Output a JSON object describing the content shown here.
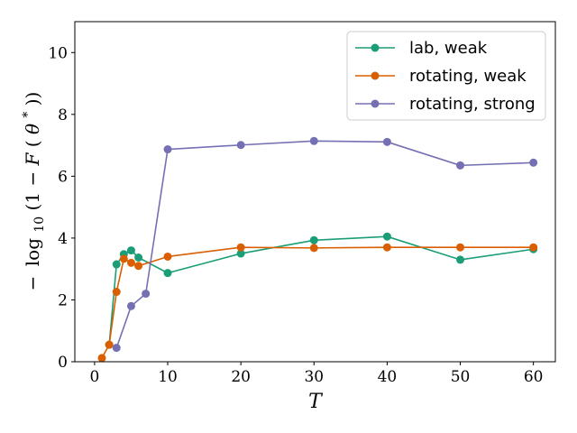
{
  "chart_data": {
    "type": "line",
    "xlabel": "T",
    "ylabel": "−log₁₀(1 − F(θ*))",
    "ylabel_parts": {
      "minus": "−",
      "log": "log",
      "sub": "10",
      "mid": "(1 − ",
      "f": "F",
      "open": "(",
      "theta": "θ",
      "star": "*",
      "close": "))"
    },
    "xlim": [
      -2.7,
      63.0
    ],
    "ylim": [
      0,
      11
    ],
    "xticks": [
      0,
      10,
      20,
      30,
      40,
      50,
      60
    ],
    "yticks": [
      0,
      2,
      4,
      6,
      8,
      10
    ],
    "legend_position": "upper right",
    "series": [
      {
        "name": "lab, weak",
        "color": "#1b9e77",
        "x": [
          2,
          3,
          4,
          5,
          6,
          10,
          20,
          30,
          40,
          50,
          60
        ],
        "y": [
          0.55,
          3.15,
          3.48,
          3.6,
          3.37,
          2.87,
          3.5,
          3.93,
          4.05,
          3.3,
          3.64
        ]
      },
      {
        "name": "rotating, weak",
        "color": "#d95f02",
        "x": [
          1,
          2,
          3,
          4,
          5,
          6,
          10,
          20,
          30,
          40,
          50,
          60
        ],
        "y": [
          0.12,
          0.55,
          2.26,
          3.33,
          3.2,
          3.1,
          3.4,
          3.7,
          3.68,
          3.7,
          3.7,
          3.7
        ]
      },
      {
        "name": "rotating, strong",
        "color": "#7570b3",
        "x": [
          3,
          5,
          7,
          10,
          20,
          30,
          40,
          50,
          60
        ],
        "y": [
          0.45,
          1.8,
          2.2,
          6.87,
          7.01,
          7.14,
          7.11,
          6.35,
          6.44
        ]
      }
    ]
  }
}
